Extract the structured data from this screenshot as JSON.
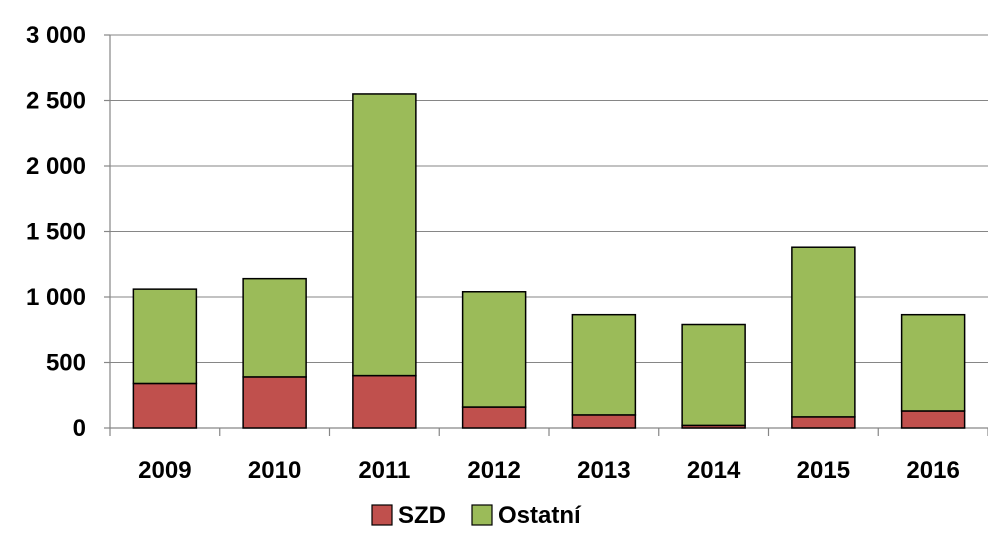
{
  "chart_data": {
    "type": "bar",
    "stacked": true,
    "categories": [
      "2009",
      "2010",
      "2011",
      "2012",
      "2013",
      "2014",
      "2015",
      "2016"
    ],
    "series": [
      {
        "name": "SZD",
        "values": [
          340,
          390,
          400,
          160,
          100,
          20,
          85,
          130
        ],
        "color": "#c0504d"
      },
      {
        "name": "Ostatní",
        "values": [
          720,
          750,
          2150,
          880,
          765,
          770,
          1295,
          735
        ],
        "color": "#9bbb59"
      }
    ],
    "ylim": [
      0,
      3000
    ],
    "yticks": [
      0,
      500,
      1000,
      1500,
      2000,
      2500,
      3000
    ],
    "ytick_labels": [
      "0",
      "500",
      "1 000",
      "1 500",
      "2 000",
      "2 500",
      "3 000"
    ],
    "grid": true,
    "legend_position": "bottom",
    "title": "",
    "xlabel": "",
    "ylabel": ""
  }
}
